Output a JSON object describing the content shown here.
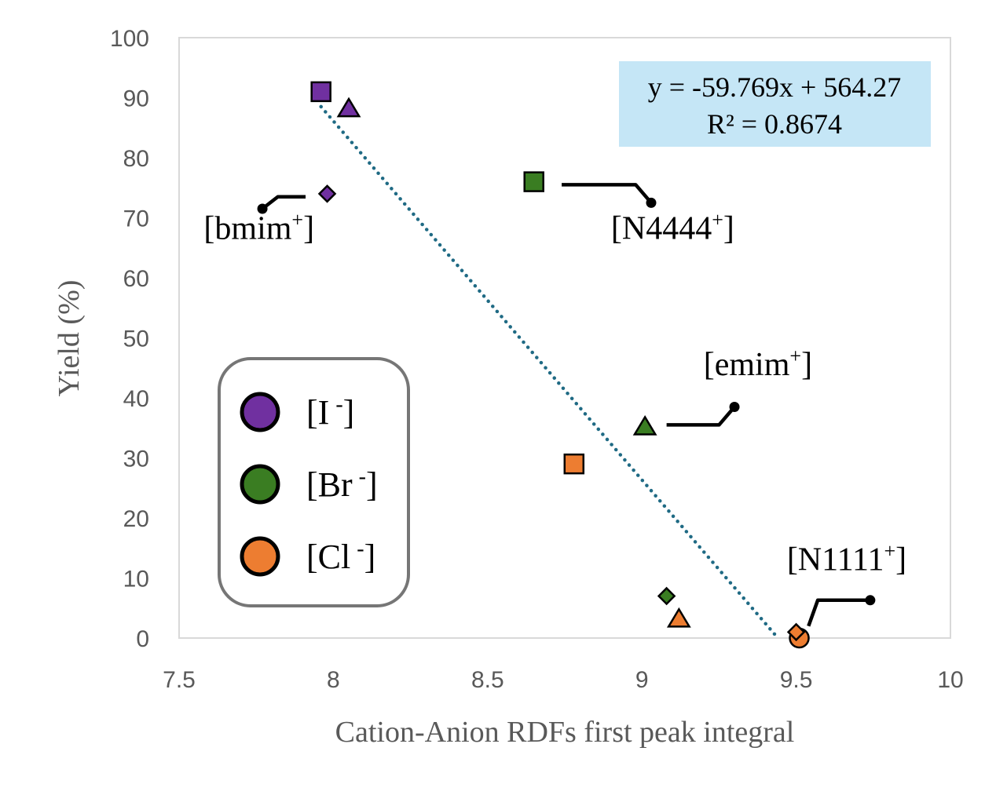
{
  "chart_data": {
    "type": "scatter",
    "xlabel": "Cation-Anion RDFs first peak integral",
    "ylabel": "Yield (%)",
    "xlim": [
      7.5,
      10
    ],
    "ylim": [
      0,
      100
    ],
    "x_ticks": [
      "7.5",
      "8",
      "8.5",
      "9",
      "9.5",
      "10"
    ],
    "y_ticks": [
      "0",
      "10",
      "20",
      "30",
      "40",
      "50",
      "60",
      "70",
      "80",
      "90",
      "100"
    ],
    "colors": {
      "I": "#7030a0",
      "Br": "#3a7d22",
      "Cl": "#ed7d31",
      "trend": "#1f6a84",
      "eq_box": "#c5e6f6"
    },
    "points": [
      {
        "anion": "I",
        "cation": "bmim",
        "marker": "diamond",
        "x": 7.98,
        "y": 74
      },
      {
        "anion": "I",
        "cation": "N4444",
        "marker": "square",
        "x": 7.96,
        "y": 91
      },
      {
        "anion": "I",
        "cation": "emim",
        "marker": "triangle",
        "x": 8.05,
        "y": 88
      },
      {
        "anion": "Br",
        "cation": "N4444",
        "marker": "square",
        "x": 8.65,
        "y": 76
      },
      {
        "anion": "Br",
        "cation": "emim",
        "marker": "triangle",
        "x": 9.01,
        "y": 35
      },
      {
        "anion": "Br",
        "cation": "bmim",
        "marker": "diamond",
        "x": 9.08,
        "y": 7
      },
      {
        "anion": "Cl",
        "cation": "N4444",
        "marker": "square",
        "x": 8.78,
        "y": 29
      },
      {
        "anion": "Cl",
        "cation": "emim",
        "marker": "triangle",
        "x": 9.12,
        "y": 3
      },
      {
        "anion": "Cl",
        "cation": "N1111",
        "marker": "circle",
        "x": 9.51,
        "y": 0
      },
      {
        "anion": "Cl",
        "cation": "bmim",
        "marker": "diamond",
        "x": 9.5,
        "y": 1
      }
    ],
    "trendline": {
      "slope": -59.769,
      "intercept": 564.27,
      "x_from": 7.96,
      "x_to": 9.44
    },
    "equation": {
      "line1": "y = -59.769x + 564.27",
      "line2": "R² = 0.8674"
    },
    "legend": [
      {
        "label": "[I",
        "sup": "-",
        "close": "]",
        "anion": "I"
      },
      {
        "label": "[Br",
        "sup": "-",
        "close": "]",
        "anion": "Br"
      },
      {
        "label": "[Cl",
        "sup": "-",
        "close": "]",
        "anion": "Cl"
      }
    ],
    "annotations": [
      {
        "name": "bmim",
        "text": "[bmim",
        "sup": "+",
        "close": "]",
        "tx": 7.58,
        "ty": 66.5,
        "leader": [
          [
            7.77,
            71.5
          ],
          [
            7.82,
            73.5
          ],
          [
            7.91,
            73.5
          ]
        ]
      },
      {
        "name": "N4444",
        "text": "[N4444",
        "sup": "+",
        "close": "]",
        "tx": 8.9,
        "ty": 66.5,
        "leader": [
          [
            9.03,
            72.5
          ],
          [
            8.98,
            75.5
          ],
          [
            8.74,
            75.5
          ]
        ]
      },
      {
        "name": "emim",
        "text": "[emim",
        "sup": "+",
        "close": "]",
        "tx": 9.2,
        "ty": 43.8,
        "leader": [
          [
            9.3,
            38.5
          ],
          [
            9.25,
            35.5
          ],
          [
            9.08,
            35.5
          ]
        ]
      },
      {
        "name": "N1111",
        "text": "[N1111",
        "sup": "+",
        "close": "]",
        "tx": 9.47,
        "ty": 11.3,
        "leader": [
          [
            9.74,
            6.3
          ],
          [
            9.57,
            6.3
          ],
          [
            9.54,
            2
          ]
        ]
      }
    ]
  }
}
